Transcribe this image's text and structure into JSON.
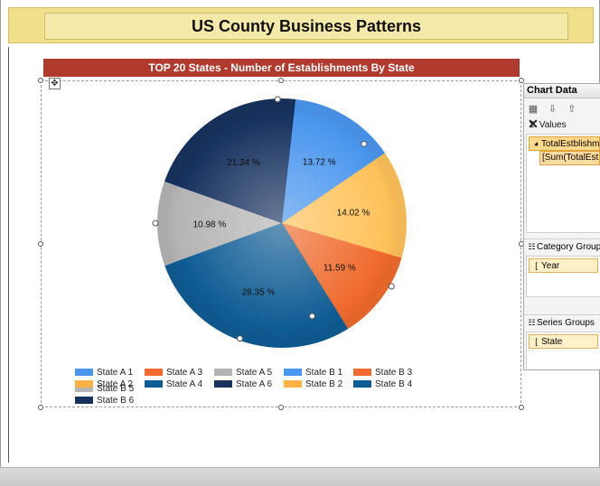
{
  "report": {
    "title": "US County Business Patterns"
  },
  "chart": {
    "title": "TOP 20 States - Number of Establishments By State",
    "move_handle_icon": "move-cross-icon"
  },
  "chart_data": {
    "type": "pie",
    "title": "TOP 20 States - Number of Establishments By State",
    "slices": [
      {
        "label": "10.98 %",
        "value": 10.98,
        "color": "#b4b4b4"
      },
      {
        "label": "21.34 %",
        "value": 21.34,
        "color": "#17325f"
      },
      {
        "label": "13.72 %",
        "value": 13.72,
        "color": "#4a96ee"
      },
      {
        "label": "14.02 %",
        "value": 14.02,
        "color": "#ffc25a"
      },
      {
        "label": "11.59 %",
        "value": 11.59,
        "color": "#ef6a2c"
      },
      {
        "label": "28.35 %",
        "value": 28.35,
        "color": "#0e5c94"
      }
    ],
    "legend": [
      {
        "name": "State A 1",
        "color": "#4a96ee"
      },
      {
        "name": "State A 3",
        "color": "#ef6a2c"
      },
      {
        "name": "State A 5",
        "color": "#b4b4b4"
      },
      {
        "name": "State B 1",
        "color": "#4a96ee"
      },
      {
        "name": "State B 3",
        "color": "#ef6a2c"
      },
      {
        "name": "State B 5",
        "color": "#b4b4b4"
      },
      {
        "name": "State A 2",
        "color": "#ffb347"
      },
      {
        "name": "State A 4",
        "color": "#0e5c94"
      },
      {
        "name": "State A 6",
        "color": "#17325f"
      },
      {
        "name": "State B 2",
        "color": "#ffb347"
      },
      {
        "name": "State B 4",
        "color": "#0e5c94"
      },
      {
        "name": "State B 6",
        "color": "#17325f"
      }
    ],
    "legend_position": "bottom"
  },
  "panel": {
    "title": "Chart Data",
    "values_label": "Values",
    "value_field": "TotalEstblishm",
    "value_expression": "[Sum(TotalEst",
    "category_groups_label": "Category Groups",
    "category_item": "Year",
    "series_groups_label": "Series Groups",
    "series_item": "State"
  }
}
